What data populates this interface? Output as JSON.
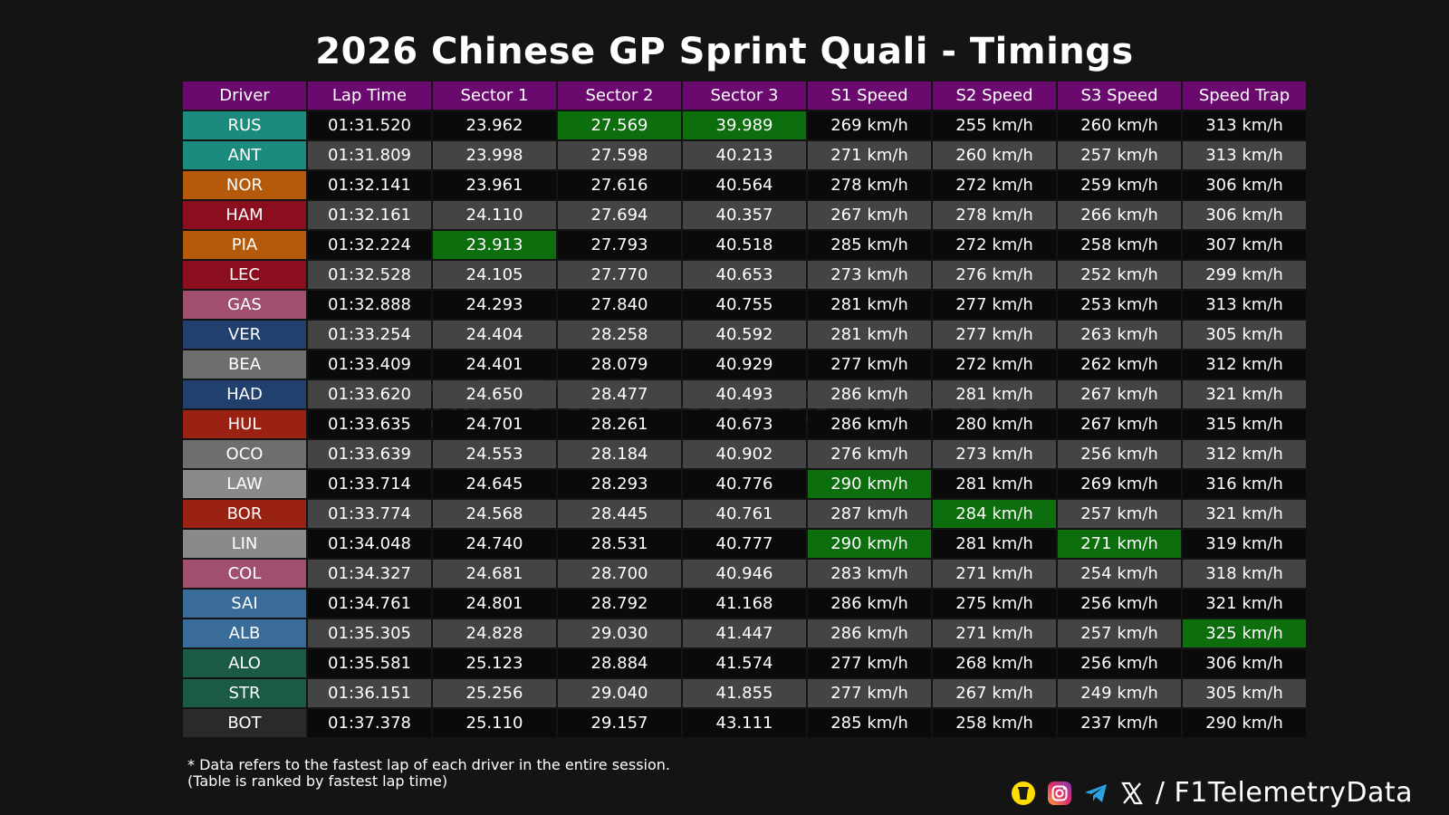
{
  "title": "2026 Chinese GP Sprint Quali - Timings",
  "watermark": "@F1TelemetryData",
  "footnote": {
    "line1": "* Data refers to the fastest lap of each driver in the entire session.",
    "line2": "(Table is ranked by fastest lap time)"
  },
  "social": {
    "handle": "/ F1TelemetryData",
    "icons": [
      "bmc-icon",
      "instagram-icon",
      "telegram-icon",
      "x-icon"
    ]
  },
  "colors": {
    "header_bg": "#6a0a6e",
    "best_bg": "#0d6e0d",
    "row_dark": "#0a0a0a",
    "row_grey": "#444444"
  },
  "chart_data": {
    "type": "table",
    "columns": [
      "Driver",
      "Lap Time",
      "Sector 1",
      "Sector 2",
      "Sector 3",
      "S1 Speed",
      "S2 Speed",
      "S3 Speed",
      "Speed Trap"
    ],
    "rows": [
      {
        "driver": "RUS",
        "color": "#1a8b7c",
        "cells": [
          "01:31.520",
          "23.962",
          "27.569",
          "39.989",
          "269 km/h",
          "255 km/h",
          "260 km/h",
          "313 km/h"
        ],
        "best": [
          2,
          3
        ]
      },
      {
        "driver": "ANT",
        "color": "#1a8b7c",
        "cells": [
          "01:31.809",
          "23.998",
          "27.598",
          "40.213",
          "271 km/h",
          "260 km/h",
          "257 km/h",
          "313 km/h"
        ],
        "best": []
      },
      {
        "driver": "NOR",
        "color": "#b45a0a",
        "cells": [
          "01:32.141",
          "23.961",
          "27.616",
          "40.564",
          "278 km/h",
          "272 km/h",
          "259 km/h",
          "306 km/h"
        ],
        "best": []
      },
      {
        "driver": "HAM",
        "color": "#8a0e1e",
        "cells": [
          "01:32.161",
          "24.110",
          "27.694",
          "40.357",
          "267 km/h",
          "278 km/h",
          "266 km/h",
          "306 km/h"
        ],
        "best": []
      },
      {
        "driver": "PIA",
        "color": "#b45a0a",
        "cells": [
          "01:32.224",
          "23.913",
          "27.793",
          "40.518",
          "285 km/h",
          "272 km/h",
          "258 km/h",
          "307 km/h"
        ],
        "best": [
          1
        ]
      },
      {
        "driver": "LEC",
        "color": "#8a0e1e",
        "cells": [
          "01:32.528",
          "24.105",
          "27.770",
          "40.653",
          "273 km/h",
          "276 km/h",
          "252 km/h",
          "299 km/h"
        ],
        "best": []
      },
      {
        "driver": "GAS",
        "color": "#a0506e",
        "cells": [
          "01:32.888",
          "24.293",
          "27.840",
          "40.755",
          "281 km/h",
          "277 km/h",
          "253 km/h",
          "313 km/h"
        ],
        "best": []
      },
      {
        "driver": "VER",
        "color": "#22406e",
        "cells": [
          "01:33.254",
          "24.404",
          "28.258",
          "40.592",
          "281 km/h",
          "277 km/h",
          "263 km/h",
          "305 km/h"
        ],
        "best": []
      },
      {
        "driver": "BEA",
        "color": "#6e6e6e",
        "cells": [
          "01:33.409",
          "24.401",
          "28.079",
          "40.929",
          "277 km/h",
          "272 km/h",
          "262 km/h",
          "312 km/h"
        ],
        "best": []
      },
      {
        "driver": "HAD",
        "color": "#22406e",
        "cells": [
          "01:33.620",
          "24.650",
          "28.477",
          "40.493",
          "286 km/h",
          "281 km/h",
          "267 km/h",
          "321 km/h"
        ],
        "best": []
      },
      {
        "driver": "HUL",
        "color": "#9a2212",
        "cells": [
          "01:33.635",
          "24.701",
          "28.261",
          "40.673",
          "286 km/h",
          "280 km/h",
          "267 km/h",
          "315 km/h"
        ],
        "best": []
      },
      {
        "driver": "OCO",
        "color": "#6e6e6e",
        "cells": [
          "01:33.639",
          "24.553",
          "28.184",
          "40.902",
          "276 km/h",
          "273 km/h",
          "256 km/h",
          "312 km/h"
        ],
        "best": []
      },
      {
        "driver": "LAW",
        "color": "#8a8a8a",
        "cells": [
          "01:33.714",
          "24.645",
          "28.293",
          "40.776",
          "290 km/h",
          "281 km/h",
          "269 km/h",
          "316 km/h"
        ],
        "best": [
          4
        ]
      },
      {
        "driver": "BOR",
        "color": "#9a2212",
        "cells": [
          "01:33.774",
          "24.568",
          "28.445",
          "40.761",
          "287 km/h",
          "284 km/h",
          "257 km/h",
          "321 km/h"
        ],
        "best": [
          5
        ]
      },
      {
        "driver": "LIN",
        "color": "#8a8a8a",
        "cells": [
          "01:34.048",
          "24.740",
          "28.531",
          "40.777",
          "290 km/h",
          "281 km/h",
          "271 km/h",
          "319 km/h"
        ],
        "best": [
          4,
          6
        ]
      },
      {
        "driver": "COL",
        "color": "#a0506e",
        "cells": [
          "01:34.327",
          "24.681",
          "28.700",
          "40.946",
          "283 km/h",
          "271 km/h",
          "254 km/h",
          "318 km/h"
        ],
        "best": []
      },
      {
        "driver": "SAI",
        "color": "#3a6c9a",
        "cells": [
          "01:34.761",
          "24.801",
          "28.792",
          "41.168",
          "286 km/h",
          "275 km/h",
          "256 km/h",
          "321 km/h"
        ],
        "best": []
      },
      {
        "driver": "ALB",
        "color": "#3a6c9a",
        "cells": [
          "01:35.305",
          "24.828",
          "29.030",
          "41.447",
          "286 km/h",
          "271 km/h",
          "257 km/h",
          "325 km/h"
        ],
        "best": [
          7
        ]
      },
      {
        "driver": "ALO",
        "color": "#1a5a46",
        "cells": [
          "01:35.581",
          "25.123",
          "28.884",
          "41.574",
          "277 km/h",
          "268 km/h",
          "256 km/h",
          "306 km/h"
        ],
        "best": []
      },
      {
        "driver": "STR",
        "color": "#1a5a46",
        "cells": [
          "01:36.151",
          "25.256",
          "29.040",
          "41.855",
          "277 km/h",
          "267 km/h",
          "249 km/h",
          "305 km/h"
        ],
        "best": []
      },
      {
        "driver": "BOT",
        "color": "#2a2a2a",
        "cells": [
          "01:37.378",
          "25.110",
          "29.157",
          "43.111",
          "285 km/h",
          "258 km/h",
          "237 km/h",
          "290 km/h"
        ],
        "best": []
      }
    ]
  }
}
